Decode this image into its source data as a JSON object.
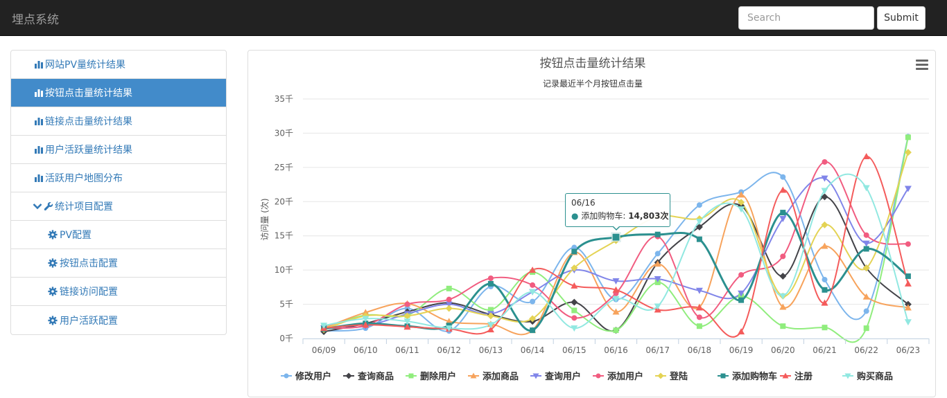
{
  "navbar": {
    "brand": "埋点系统",
    "search_placeholder": "Search",
    "submit_label": "Submit"
  },
  "sidebar": {
    "items": [
      {
        "label": "网站PV量统计结果",
        "icon": "bar-chart-icon"
      },
      {
        "label": "按钮点击量统计结果",
        "icon": "bar-chart-icon",
        "active": true
      },
      {
        "label": "链接点击量统计结果",
        "icon": "bar-chart-icon"
      },
      {
        "label": "用户活跃量统计结果",
        "icon": "bar-chart-icon"
      },
      {
        "label": "活跃用户地图分布",
        "icon": "bar-chart-icon"
      },
      {
        "label": "统计项目配置",
        "icon": "wrench-icon",
        "expanded": true
      },
      {
        "label": "PV配置",
        "icon": "gear-icon"
      },
      {
        "label": "按钮点击配置",
        "icon": "gear-icon"
      },
      {
        "label": "链接访问配置",
        "icon": "gear-icon"
      },
      {
        "label": "用户活跃配置",
        "icon": "gear-icon"
      }
    ]
  },
  "tooltip": {
    "date": "06/16",
    "series": "添加购物车",
    "value_text": "14,803次"
  },
  "chart_data": {
    "type": "line",
    "title": "按钮点击量统计结果",
    "subtitle": "记录最近半个月按钮点击量",
    "ylabel": "访问量 (次)",
    "xlabel": "",
    "ylim": [
      0,
      35000
    ],
    "yticks": [
      0,
      5000,
      10000,
      15000,
      20000,
      25000,
      30000,
      35000
    ],
    "ytick_labels": [
      "0千",
      "5千",
      "10千",
      "15千",
      "20千",
      "25千",
      "30千",
      "35千"
    ],
    "grid": true,
    "legend_position": "bottom",
    "categories": [
      "06/09",
      "06/10",
      "06/11",
      "06/12",
      "06/13",
      "06/14",
      "06/15",
      "06/16",
      "06/17",
      "06/18",
      "06/19",
      "06/20",
      "06/21",
      "06/22",
      "06/23"
    ],
    "series": [
      {
        "name": "修改用户",
        "color": "#7cb5ec",
        "marker": "circle",
        "values": [
          1100,
          1500,
          4400,
          1100,
          7600,
          5400,
          13300,
          5700,
          12400,
          19500,
          21400,
          23600,
          8600,
          4000,
          29500
        ]
      },
      {
        "name": "查询商品",
        "color": "#434348",
        "marker": "diamond",
        "values": [
          1000,
          2200,
          3900,
          5200,
          3500,
          2500,
          5300,
          1200,
          11100,
          16300,
          19400,
          9100,
          20700,
          10300,
          5000
        ]
      },
      {
        "name": "删除用户",
        "color": "#90ed7d",
        "marker": "square",
        "values": [
          1600,
          3400,
          3400,
          7300,
          4200,
          9700,
          4100,
          1200,
          8200,
          1800,
          6200,
          1800,
          1600,
          1500,
          29400
        ]
      },
      {
        "name": "添加商品",
        "color": "#f7a35c",
        "marker": "triangle",
        "values": [
          1500,
          3800,
          5100,
          2500,
          2100,
          1200,
          12600,
          3900,
          10900,
          4600,
          21000,
          4600,
          13500,
          6100,
          4500
        ]
      },
      {
        "name": "查询用户",
        "color": "#8085e9",
        "marker": "triangle-down",
        "values": [
          1500,
          1800,
          3600,
          5000,
          3600,
          6800,
          10000,
          8400,
          8700,
          7000,
          6600,
          17500,
          23400,
          13900,
          21900
        ]
      },
      {
        "name": "添加用户",
        "color": "#f15c80",
        "marker": "circle",
        "values": [
          1500,
          1900,
          5000,
          5700,
          8800,
          7800,
          3000,
          6600,
          14900,
          3100,
          9300,
          12000,
          25800,
          15100,
          13800
        ]
      },
      {
        "name": "登陆",
        "color": "#e4d354",
        "marker": "diamond",
        "values": [
          1300,
          3300,
          3300,
          4400,
          3300,
          2900,
          10300,
          14300,
          17800,
          17500,
          19900,
          6200,
          16600,
          10300,
          27200
        ]
      },
      {
        "name": "添加购物车",
        "color": "#2b908f",
        "marker": "square",
        "values": [
          1400,
          2200,
          1800,
          1900,
          8000,
          1200,
          12700,
          14803,
          15200,
          14500,
          5600,
          18400,
          7100,
          13100,
          9100
        ]
      },
      {
        "name": "注册",
        "color": "#f45b5b",
        "marker": "triangle",
        "values": [
          1500,
          2000,
          1700,
          1400,
          1300,
          10000,
          7700,
          7100,
          4200,
          4500,
          1000,
          21700,
          5200,
          26600,
          8000
        ]
      },
      {
        "name": "购买商品",
        "color": "#91e8e1",
        "marker": "triangle-down",
        "values": [
          1900,
          2900,
          2500,
          1500,
          2000,
          6800,
          1500,
          5800,
          4700,
          17100,
          18900,
          6200,
          21600,
          22000,
          2400
        ]
      }
    ]
  }
}
